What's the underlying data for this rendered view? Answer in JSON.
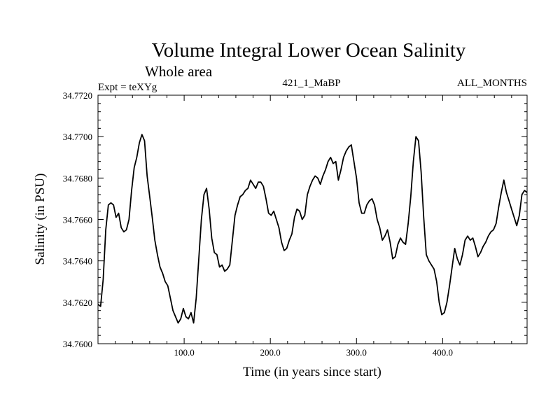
{
  "chart_data": {
    "type": "line",
    "title": "Volume Integral Lower Ocean Salinity",
    "subtitle": "Whole area",
    "top_left_label": "Expt = teXYg",
    "top_center_label": "421_1_MaBP",
    "top_right_label": "ALL_MONTHS",
    "xlabel": "Time (in years since start)",
    "ylabel": "Salinity (in PSU)",
    "xlim": [
      0,
      498
    ],
    "ylim": [
      34.76,
      34.772
    ],
    "x_ticks": [
      100,
      200,
      300,
      400
    ],
    "x_tick_labels": [
      "100.0",
      "200.0",
      "300.0",
      "400.0"
    ],
    "y_ticks": [
      34.76,
      34.762,
      34.764,
      34.766,
      34.768,
      34.77,
      34.772
    ],
    "y_tick_labels": [
      "34.7600",
      "34.7620",
      "34.7640",
      "34.7660",
      "34.7680",
      "34.7700",
      "34.7720"
    ],
    "grid": false,
    "series": [
      {
        "x": [
          0,
          3,
          6,
          9,
          12,
          15,
          18,
          21,
          24,
          27,
          30,
          33,
          36,
          39,
          42,
          45,
          48,
          51,
          54,
          57,
          60,
          63,
          66,
          69,
          72,
          75,
          78,
          81,
          84,
          87,
          90,
          93,
          96,
          99,
          102,
          105,
          108,
          111,
          114,
          117,
          120,
          123,
          126,
          129,
          132,
          135,
          138,
          141,
          144,
          147,
          150,
          153,
          156,
          159,
          162,
          165,
          168,
          171,
          174,
          177,
          180,
          183,
          186,
          189,
          192,
          195,
          198,
          201,
          204,
          207,
          210,
          213,
          216,
          219,
          222,
          225,
          228,
          231,
          234,
          237,
          240,
          243,
          246,
          249,
          252,
          255,
          258,
          261,
          264,
          267,
          270,
          273,
          276,
          279,
          282,
          285,
          288,
          291,
          294,
          297,
          300,
          303,
          306,
          309,
          312,
          315,
          318,
          321,
          324,
          327,
          330,
          333,
          336,
          339,
          342,
          345,
          348,
          351,
          354,
          357,
          360,
          363,
          366,
          369,
          372,
          375,
          378,
          381,
          384,
          387,
          390,
          393,
          396,
          399,
          402,
          405,
          408,
          411,
          414,
          417,
          420,
          423,
          426,
          429,
          432,
          435,
          438,
          441,
          444,
          447,
          450,
          453,
          456,
          459,
          462,
          465,
          468,
          471,
          474,
          477,
          480,
          483,
          486,
          489,
          492,
          495,
          498
        ],
        "y": [
          34.7619,
          34.7618,
          34.7631,
          34.7655,
          34.7667,
          34.7668,
          34.7667,
          34.7661,
          34.7663,
          34.7656,
          34.7654,
          34.7655,
          34.766,
          34.7674,
          34.7685,
          34.769,
          34.7697,
          34.7701,
          34.7698,
          34.7681,
          34.7671,
          34.7661,
          34.765,
          34.7643,
          34.7637,
          34.7634,
          34.763,
          34.7628,
          34.7622,
          34.7616,
          34.7613,
          34.761,
          34.7612,
          34.7617,
          34.7613,
          34.7612,
          34.7615,
          34.761,
          34.7622,
          34.7641,
          34.766,
          34.7672,
          34.7675,
          34.7665,
          34.7651,
          34.7644,
          34.7643,
          34.7637,
          34.7638,
          34.7635,
          34.7636,
          34.7638,
          34.765,
          34.7662,
          34.7667,
          34.7671,
          34.7672,
          34.7674,
          34.7675,
          34.7679,
          34.7677,
          34.7675,
          34.7678,
          34.7678,
          34.7676,
          34.767,
          34.7663,
          34.7662,
          34.7664,
          34.766,
          34.7656,
          34.7649,
          34.7645,
          34.7646,
          34.765,
          34.7653,
          34.7661,
          34.7665,
          34.7664,
          34.766,
          34.7662,
          34.7672,
          34.7676,
          34.7679,
          34.7681,
          34.768,
          34.7677,
          34.7681,
          34.7684,
          34.7688,
          34.769,
          34.7687,
          34.7688,
          34.7679,
          34.7684,
          34.769,
          34.7693,
          34.7695,
          34.7696,
          34.7688,
          34.768,
          34.7668,
          34.7663,
          34.7663,
          34.7667,
          34.7669,
          34.767,
          34.7667,
          34.766,
          34.7656,
          34.765,
          34.7652,
          34.7655,
          34.7649,
          34.7641,
          34.7642,
          34.7648,
          34.7651,
          34.7649,
          34.7648,
          34.7658,
          34.7671,
          34.7688,
          34.77,
          34.7698,
          34.7683,
          34.7661,
          34.7643,
          34.764,
          34.7638,
          34.7636,
          34.763,
          34.762,
          34.7614,
          34.7615,
          34.762,
          34.7628,
          34.7637,
          34.7646,
          34.7641,
          34.7638,
          34.7643,
          34.765,
          34.7652,
          34.765,
          34.7651,
          34.7647,
          34.7642,
          34.7644,
          34.7647,
          34.7649,
          34.7652,
          34.7654,
          34.7655,
          34.7658,
          34.7666,
          34.7673,
          34.7679,
          34.7673,
          34.7669,
          34.7665,
          34.7661,
          34.7657,
          34.7662,
          34.7672,
          34.7674,
          34.7673
        ]
      }
    ]
  }
}
